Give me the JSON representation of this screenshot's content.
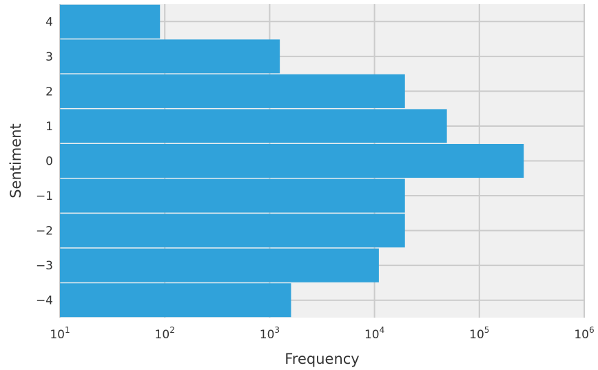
{
  "chart_data": {
    "type": "bar",
    "orientation": "horizontal",
    "title": "",
    "xlabel": "Frequency",
    "ylabel": "Sentiment",
    "xscale": "log",
    "xlim": [
      10,
      1000000
    ],
    "x_tick_labels": [
      {
        "value": 10,
        "base": "10",
        "exp": "1"
      },
      {
        "value": 100,
        "base": "10",
        "exp": "2"
      },
      {
        "value": 1000,
        "base": "10",
        "exp": "3"
      },
      {
        "value": 10000,
        "base": "10",
        "exp": "4"
      },
      {
        "value": 100000,
        "base": "10",
        "exp": "5"
      },
      {
        "value": 1000000,
        "base": "10",
        "exp": "6"
      }
    ],
    "categories": [
      "4",
      "3",
      "2",
      "1",
      "0",
      "−1",
      "−2",
      "−3",
      "−4"
    ],
    "values": [
      90,
      1250,
      19500,
      49000,
      265000,
      19500,
      19500,
      11000,
      1600
    ],
    "grid": true,
    "colors": {
      "bar": "#30A2DA",
      "background": "#F0F0F0",
      "grid": "#CBCBCB",
      "text": "#333333"
    }
  }
}
